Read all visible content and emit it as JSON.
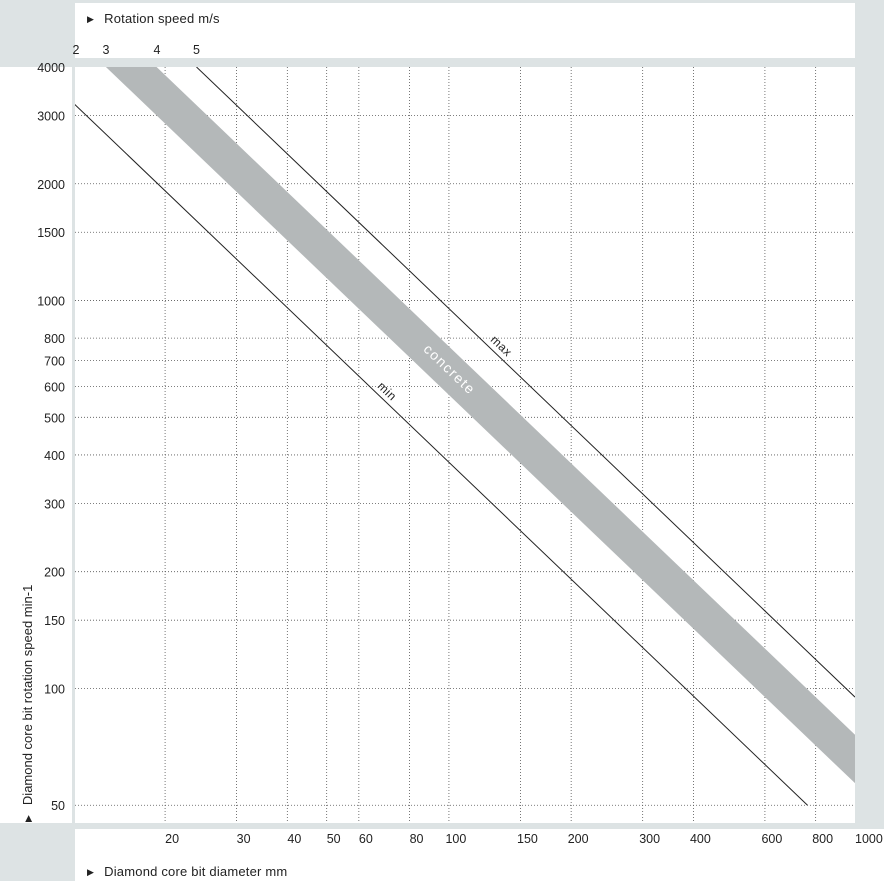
{
  "chart_data": {
    "type": "line",
    "xlabel": "Diamond core bit diameter mm",
    "ylabel": "Diamond core bit rotation speed min-1",
    "top_axis_label": "Rotation speed m/s",
    "x_scale": "log",
    "y_scale": "log",
    "xlim": [
      12,
      1000
    ],
    "ylim": [
      45,
      4000
    ],
    "x_ticks": [
      20,
      30,
      40,
      50,
      60,
      80,
      100,
      150,
      200,
      300,
      400,
      600,
      800,
      1000
    ],
    "x_tick_labels": [
      "20",
      "30",
      "40",
      "50",
      "60",
      "80",
      "100",
      "150",
      "200",
      "300",
      "400",
      "600",
      "800",
      "1000"
    ],
    "y_ticks": [
      50,
      100,
      150,
      200,
      300,
      400,
      500,
      600,
      700,
      800,
      1000,
      1500,
      2000,
      3000,
      4000
    ],
    "y_tick_labels": [
      "50",
      "100",
      "150",
      "200",
      "300",
      "400",
      "500",
      "600",
      "700",
      "800",
      "1000",
      "1500",
      "2000",
      "3000",
      "4000"
    ],
    "top_ticks": [
      {
        "label": "2",
        "diameter": 9.6
      },
      {
        "label": "3",
        "diameter": 14.3
      },
      {
        "label": "4",
        "diameter": 19.1
      },
      {
        "label": "5",
        "diameter": 23.9
      }
    ],
    "grid": true,
    "series": [
      {
        "name": "min",
        "type": "line",
        "color": "#222222",
        "speed": 2,
        "x": [
          9.6,
          764
        ],
        "y": [
          4000,
          50
        ]
      },
      {
        "name": "max",
        "type": "line",
        "color": "#222222",
        "speed": 5,
        "x": [
          23.9,
          1000
        ],
        "y": [
          4000,
          95
        ]
      },
      {
        "name": "concrete",
        "type": "band",
        "color": "#b4b8b9",
        "speed_range": [
          3,
          4
        ],
        "x": [
          14.3,
          1000
        ],
        "y_low": [
          4000,
          57
        ],
        "y_high": [
          5333,
          76
        ]
      }
    ]
  }
}
